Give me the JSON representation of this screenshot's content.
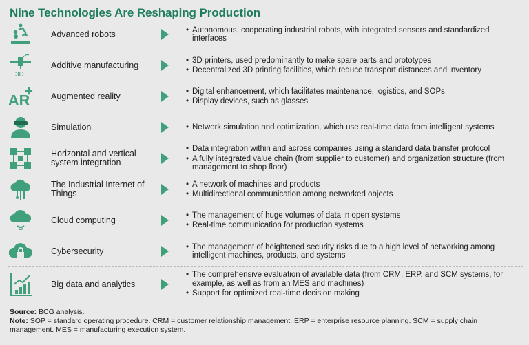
{
  "title": "Nine Technologies Are Reshaping Production",
  "accent_color": "#3fa07b",
  "rows": [
    {
      "icon": "robot-arm-icon",
      "label": "Advanced robots",
      "bullets": [
        "Autonomous, cooperating industrial robots, with integrated sensors and standardized interfaces"
      ]
    },
    {
      "icon": "3d-printer-icon",
      "icon_text": "3D",
      "label": "Additive manufacturing",
      "bullets": [
        "3D printers, used predominantly to make spare parts and prototypes",
        "Decentralized 3D printing facilities, which reduce transport distances and inventory"
      ]
    },
    {
      "icon": "ar-plus-icon",
      "icon_text": "AR",
      "label": "Augmented reality",
      "bullets": [
        "Digital enhancement, which facilitates maintenance, logistics, and SOPs",
        "Display devices, such as glasses"
      ]
    },
    {
      "icon": "vr-user-icon",
      "label": "Simulation",
      "bullets": [
        "Network simulation and optimization, which use real-time data from intelligent systems"
      ]
    },
    {
      "icon": "network-blocks-icon",
      "label": "Horizontal and vertical system integration",
      "bullets": [
        "Data integration within and across companies using a standard data transfer protocol",
        "A fully integrated value chain (from supplier to customer) and organization structure (from management to shop floor)"
      ]
    },
    {
      "icon": "cloud-circuit-icon",
      "label": "The Industrial Internet of Things",
      "bullets": [
        "A network of machines and products",
        "Multidirectional communication among networked objects"
      ]
    },
    {
      "icon": "cloud-signal-icon",
      "label": "Cloud computing",
      "bullets": [
        "The management of huge volumes of data in open systems",
        "Real-time communication for production systems"
      ]
    },
    {
      "icon": "cloud-lock-icon",
      "label": "Cybersecurity",
      "bullets": [
        "The management of heightened security risks due to a high level of networking among intelligent machines, products, and systems"
      ]
    },
    {
      "icon": "bar-chart-trend-icon",
      "label": "Big data and analytics",
      "bullets": [
        "The comprehensive evaluation of available data (from CRM, ERP,  and SCM systems, for example, as well as from an MES and machines)",
        "Support for optimized real-time decision making"
      ]
    }
  ],
  "footer": {
    "source_label": "Source:",
    "source_text": " BCG analysis.",
    "note_label": "Note:",
    "note_text": " SOP = standard operating procedure. CRM = customer relationship management. ERP = enterprise resource planning. SCM = supply chain management. MES = manufacturing execution system."
  }
}
